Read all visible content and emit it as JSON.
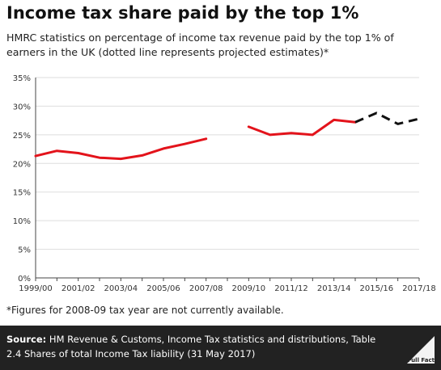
{
  "title": "Income tax share paid by the top 1%",
  "subtitle": "HMRC statistics on percentage of income tax revenue paid by the top 1% of earners in the UK (dotted line represents projected estimates)*",
  "footnote": "*Figures for 2008-09 tax year are not currently available.",
  "source": {
    "label": "Source:",
    "text": "HM Revenue & Customs, Income Tax statistics and distributions, Table 2.4 Shares of total Income Tax liability (31 May 2017)"
  },
  "logo": {
    "text": "Full Fact",
    "icon": "full-fact-logo"
  },
  "colors": {
    "actual": "#e3131b",
    "projected": "#111111",
    "grid": "#dddddd",
    "source_bg": "#222222"
  },
  "chart_data": {
    "type": "line",
    "title": "Income tax share paid by the top 1%",
    "xlabel": "",
    "ylabel": "",
    "ylim": [
      0,
      35
    ],
    "yticks": [
      "0%",
      "5%",
      "10%",
      "15%",
      "20%",
      "25%",
      "30%",
      "35%"
    ],
    "x": [
      "1999/00",
      "2000/01",
      "2001/02",
      "2002/03",
      "2003/04",
      "2004/05",
      "2005/06",
      "2006/07",
      "2007/08",
      "2008/09",
      "2009/10",
      "2010/11",
      "2011/12",
      "2012/13",
      "2013/14",
      "2014/15",
      "2015/16",
      "2016/17",
      "2017/18"
    ],
    "xtick_labels": [
      "1999/00",
      "2001/02",
      "2003/04",
      "2005/06",
      "2007/08",
      "2009/10",
      "2011/12",
      "2013/14",
      "2015/16",
      "2017/18"
    ],
    "grid": "horizontal",
    "series": [
      {
        "style": "solid",
        "color": "#e3131b",
        "points": [
          [
            "1999/00",
            21.3
          ],
          [
            "2000/01",
            22.2
          ],
          [
            "2001/02",
            21.8
          ],
          [
            "2002/03",
            21.0
          ],
          [
            "2003/04",
            20.8
          ],
          [
            "2004/05",
            21.4
          ],
          [
            "2005/06",
            22.6
          ],
          [
            "2006/07",
            23.4
          ],
          [
            "2007/08",
            24.3
          ]
        ]
      },
      {
        "style": "solid",
        "color": "#e3131b",
        "points": [
          [
            "2009/10",
            26.4
          ],
          [
            "2010/11",
            25.0
          ],
          [
            "2011/12",
            25.3
          ],
          [
            "2012/13",
            25.0
          ],
          [
            "2013/14",
            27.6
          ],
          [
            "2014/15",
            27.2
          ]
        ]
      },
      {
        "style": "dashed",
        "color": "#111111",
        "points": [
          [
            "2014/15",
            27.2
          ],
          [
            "2015/16",
            28.8
          ],
          [
            "2016/17",
            26.9
          ],
          [
            "2017/18",
            27.8
          ]
        ]
      }
    ]
  }
}
